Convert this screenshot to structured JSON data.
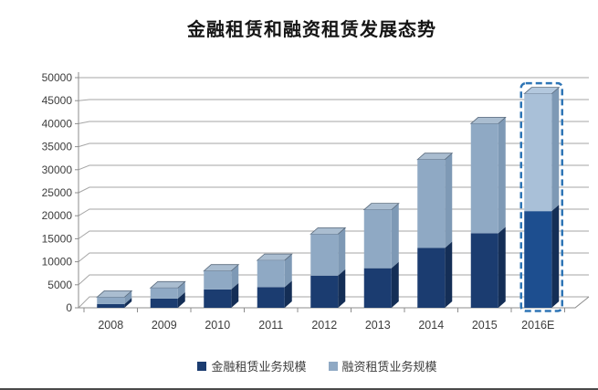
{
  "title": "金融租赁和融资租赁发展态势",
  "chart_data": {
    "type": "bar",
    "stacked": true,
    "style": "3d-column",
    "title": "金融租赁和融资租赁发展态势",
    "xlabel": "",
    "ylabel": "",
    "ylim": [
      0,
      50000
    ],
    "ytick_step": 5000,
    "yticks": [
      "0",
      "5000",
      "10000",
      "15000",
      "20000",
      "25000",
      "30000",
      "35000",
      "40000",
      "45000",
      "50000"
    ],
    "categories": [
      "2008",
      "2009",
      "2010",
      "2011",
      "2012",
      "2013",
      "2014",
      "2015",
      "2016E"
    ],
    "series": [
      {
        "name": "金融租赁业务规模",
        "color": "#1b3c70",
        "side_color": "#142e56",
        "values": [
          800,
          2000,
          4000,
          4500,
          7000,
          8600,
          13000,
          16200,
          21000
        ]
      },
      {
        "name": "融资租赁业务规模",
        "color": "#8fa9c4",
        "side_color": "#7e99b5",
        "top_color": "#aabdd0",
        "values": [
          1500,
          2300,
          4000,
          5800,
          9000,
          12700,
          19200,
          23800,
          25500
        ]
      }
    ],
    "totals": [
      2300,
      4300,
      8000,
      10300,
      16000,
      21300,
      32200,
      40000,
      46500
    ],
    "forecast_category": "2016E",
    "forecast": {
      "outline_color": "#2e75b6",
      "dark_fill": "#1d4e8f",
      "light_fill": "#a9c0d8",
      "top_fill": "#b3c8de"
    },
    "gridline_color": "#a6a6a6",
    "axis_line_color": "#8c8c8c",
    "axis_text_color": "#3d3d3d",
    "legend_position": "bottom"
  }
}
